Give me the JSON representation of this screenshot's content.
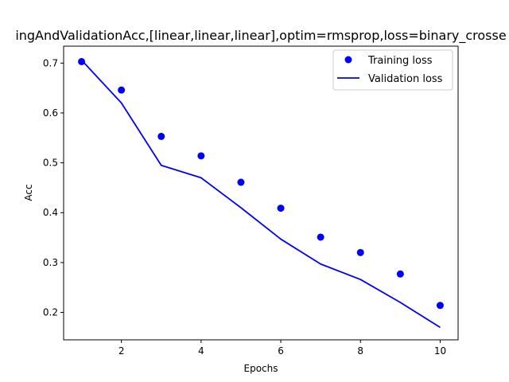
{
  "chart_data": {
    "type": "scatter",
    "title": "ingAndValidationAcc,[linear,linear,linear],optim=rmsprop,loss=binary_crosse",
    "xlabel": "Epochs",
    "ylabel": "Acc",
    "xlim": [
      0.55,
      10.45
    ],
    "ylim": [
      0.145,
      0.734
    ],
    "x_ticks": [
      2,
      4,
      6,
      8,
      10
    ],
    "y_ticks": [
      0.2,
      0.3,
      0.4,
      0.5,
      0.6,
      0.7
    ],
    "grid": false,
    "legend_position": "upper right",
    "series": [
      {
        "name": "Training loss",
        "style": "markers",
        "color": "#0000ff",
        "x": [
          1,
          2,
          3,
          4,
          5,
          6,
          7,
          8,
          9,
          10
        ],
        "y": [
          0.703,
          0.646,
          0.553,
          0.514,
          0.461,
          0.409,
          0.351,
          0.32,
          0.277,
          0.214
        ]
      },
      {
        "name": "Validation loss",
        "style": "line",
        "color": "#0000ff",
        "x": [
          1,
          2,
          3,
          4,
          5,
          6,
          7,
          8,
          9,
          10
        ],
        "y": [
          0.706,
          0.62,
          0.495,
          0.47,
          0.41,
          0.347,
          0.297,
          0.266,
          0.22,
          0.17
        ]
      }
    ]
  }
}
